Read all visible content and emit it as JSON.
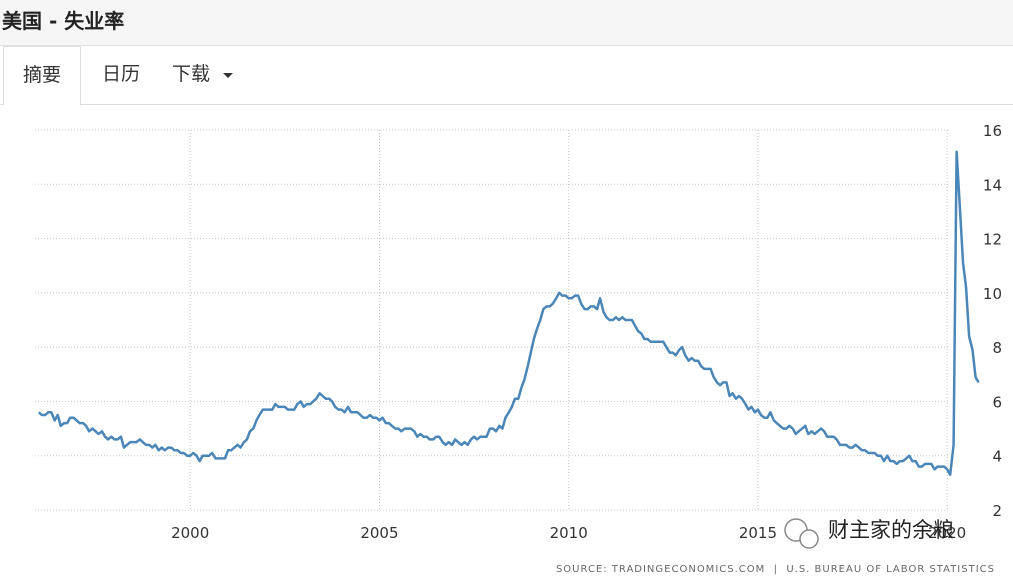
{
  "header": {
    "title": "美国 - 失业率"
  },
  "tabs": [
    "摘要",
    "日历",
    "下载"
  ],
  "source": "SOURCE: TRADINGECONOMICS.COM  |  U.S. BUREAU OF LABOR STATISTICS",
  "watermark": "财主家的余粮",
  "chart_data": {
    "type": "line",
    "color": "#4a86b8",
    "grid": true,
    "xlim": [
      1995.9,
      2021
    ],
    "xticks": [
      2000,
      2005,
      2010,
      2015,
      2020
    ],
    "ylim": [
      2,
      16
    ],
    "yticks": [
      2,
      4,
      6,
      8,
      10,
      12,
      14,
      16
    ],
    "x": [
      1996,
      1996.08,
      1996.17,
      1996.25,
      1996.33,
      1996.42,
      1996.5,
      1996.58,
      1996.67,
      1996.75,
      1996.83,
      1996.92,
      1997,
      1997.08,
      1997.17,
      1997.25,
      1997.33,
      1997.42,
      1997.5,
      1997.58,
      1997.67,
      1997.75,
      1997.83,
      1997.92,
      1998,
      1998.08,
      1998.17,
      1998.25,
      1998.33,
      1998.42,
      1998.5,
      1998.58,
      1998.67,
      1998.75,
      1998.83,
      1998.92,
      1999,
      1999.08,
      1999.17,
      1999.25,
      1999.33,
      1999.42,
      1999.5,
      1999.58,
      1999.67,
      1999.75,
      1999.83,
      1999.92,
      2000,
      2000.08,
      2000.17,
      2000.25,
      2000.33,
      2000.42,
      2000.5,
      2000.58,
      2000.67,
      2000.75,
      2000.83,
      2000.92,
      2001,
      2001.08,
      2001.17,
      2001.25,
      2001.33,
      2001.42,
      2001.5,
      2001.58,
      2001.67,
      2001.75,
      2001.83,
      2001.92,
      2002,
      2002.08,
      2002.17,
      2002.25,
      2002.33,
      2002.42,
      2002.5,
      2002.58,
      2002.67,
      2002.75,
      2002.83,
      2002.92,
      2003,
      2003.08,
      2003.17,
      2003.25,
      2003.33,
      2003.42,
      2003.5,
      2003.58,
      2003.67,
      2003.75,
      2003.83,
      2003.92,
      2004,
      2004.08,
      2004.17,
      2004.25,
      2004.33,
      2004.42,
      2004.5,
      2004.58,
      2004.67,
      2004.75,
      2004.83,
      2004.92,
      2005,
      2005.08,
      2005.17,
      2005.25,
      2005.33,
      2005.42,
      2005.5,
      2005.58,
      2005.67,
      2005.75,
      2005.83,
      2005.92,
      2006,
      2006.08,
      2006.17,
      2006.25,
      2006.33,
      2006.42,
      2006.5,
      2006.58,
      2006.67,
      2006.75,
      2006.83,
      2006.92,
      2007,
      2007.08,
      2007.17,
      2007.25,
      2007.33,
      2007.42,
      2007.5,
      2007.58,
      2007.67,
      2007.75,
      2007.83,
      2007.92,
      2008,
      2008.08,
      2008.17,
      2008.25,
      2008.33,
      2008.42,
      2008.5,
      2008.58,
      2008.67,
      2008.75,
      2008.83,
      2008.92,
      2009,
      2009.08,
      2009.17,
      2009.25,
      2009.33,
      2009.42,
      2009.5,
      2009.58,
      2009.67,
      2009.75,
      2009.83,
      2009.92,
      2010,
      2010.08,
      2010.17,
      2010.25,
      2010.33,
      2010.42,
      2010.5,
      2010.58,
      2010.67,
      2010.75,
      2010.83,
      2010.92,
      2011,
      2011.08,
      2011.17,
      2011.25,
      2011.33,
      2011.42,
      2011.5,
      2011.58,
      2011.67,
      2011.75,
      2011.83,
      2011.92,
      2012,
      2012.08,
      2012.17,
      2012.25,
      2012.33,
      2012.42,
      2012.5,
      2012.58,
      2012.67,
      2012.75,
      2012.83,
      2012.92,
      2013,
      2013.08,
      2013.17,
      2013.25,
      2013.33,
      2013.42,
      2013.5,
      2013.58,
      2013.67,
      2013.75,
      2013.83,
      2013.92,
      2014,
      2014.08,
      2014.17,
      2014.25,
      2014.33,
      2014.42,
      2014.5,
      2014.58,
      2014.67,
      2014.75,
      2014.83,
      2014.92,
      2015,
      2015.08,
      2015.17,
      2015.25,
      2015.33,
      2015.42,
      2015.5,
      2015.58,
      2015.67,
      2015.75,
      2015.83,
      2015.92,
      2016,
      2016.08,
      2016.17,
      2016.25,
      2016.33,
      2016.42,
      2016.5,
      2016.58,
      2016.67,
      2016.75,
      2016.83,
      2016.92,
      2017,
      2017.08,
      2017.17,
      2017.25,
      2017.33,
      2017.42,
      2017.5,
      2017.58,
      2017.67,
      2017.75,
      2017.83,
      2017.92,
      2018,
      2018.08,
      2018.17,
      2018.25,
      2018.33,
      2018.42,
      2018.5,
      2018.58,
      2018.67,
      2018.75,
      2018.83,
      2018.92,
      2019,
      2019.08,
      2019.17,
      2019.25,
      2019.33,
      2019.42,
      2019.5,
      2019.58,
      2019.67,
      2019.75,
      2019.83,
      2019.92,
      2020,
      2020.08,
      2020.17,
      2020.25,
      2020.33,
      2020.42,
      2020.5,
      2020.58,
      2020.67,
      2020.75,
      2020.83
    ],
    "values": [
      5.6,
      5.5,
      5.5,
      5.6,
      5.6,
      5.3,
      5.5,
      5.1,
      5.2,
      5.2,
      5.4,
      5.4,
      5.3,
      5.2,
      5.2,
      5.1,
      4.9,
      5.0,
      4.9,
      4.8,
      4.9,
      4.7,
      4.6,
      4.7,
      4.6,
      4.6,
      4.7,
      4.3,
      4.4,
      4.5,
      4.5,
      4.5,
      4.6,
      4.5,
      4.4,
      4.4,
      4.3,
      4.4,
      4.2,
      4.3,
      4.2,
      4.3,
      4.3,
      4.2,
      4.2,
      4.1,
      4.1,
      4.0,
      4.0,
      4.1,
      4.0,
      3.8,
      4.0,
      4.0,
      4.0,
      4.1,
      3.9,
      3.9,
      3.9,
      3.9,
      4.2,
      4.2,
      4.3,
      4.4,
      4.3,
      4.5,
      4.6,
      4.9,
      5.0,
      5.3,
      5.5,
      5.7,
      5.7,
      5.7,
      5.7,
      5.9,
      5.8,
      5.8,
      5.8,
      5.7,
      5.7,
      5.7,
      5.9,
      6.0,
      5.8,
      5.9,
      5.9,
      6.0,
      6.1,
      6.3,
      6.2,
      6.1,
      6.1,
      6.0,
      5.8,
      5.7,
      5.7,
      5.6,
      5.8,
      5.6,
      5.6,
      5.6,
      5.5,
      5.4,
      5.4,
      5.5,
      5.4,
      5.4,
      5.3,
      5.4,
      5.2,
      5.2,
      5.1,
      5.0,
      5.0,
      4.9,
      5.0,
      5.0,
      5.0,
      4.9,
      4.7,
      4.8,
      4.7,
      4.7,
      4.6,
      4.6,
      4.7,
      4.7,
      4.5,
      4.4,
      4.5,
      4.4,
      4.6,
      4.5,
      4.4,
      4.5,
      4.4,
      4.6,
      4.7,
      4.6,
      4.7,
      4.7,
      4.7,
      5.0,
      5.0,
      4.9,
      5.1,
      5.0,
      5.4,
      5.6,
      5.8,
      6.1,
      6.1,
      6.5,
      6.8,
      7.3,
      7.8,
      8.3,
      8.7,
      9.0,
      9.4,
      9.5,
      9.5,
      9.6,
      9.8,
      10.0,
      9.9,
      9.9,
      9.8,
      9.8,
      9.9,
      9.9,
      9.6,
      9.4,
      9.4,
      9.5,
      9.5,
      9.4,
      9.8,
      9.3,
      9.1,
      9.0,
      9.0,
      9.1,
      9.0,
      9.1,
      9.0,
      9.0,
      9.0,
      8.8,
      8.6,
      8.5,
      8.3,
      8.3,
      8.2,
      8.2,
      8.2,
      8.2,
      8.2,
      8.0,
      7.8,
      7.8,
      7.7,
      7.9,
      8.0,
      7.7,
      7.5,
      7.6,
      7.5,
      7.5,
      7.3,
      7.2,
      7.2,
      7.2,
      6.9,
      6.7,
      6.6,
      6.7,
      6.7,
      6.2,
      6.3,
      6.1,
      6.2,
      6.1,
      5.9,
      5.7,
      5.8,
      5.6,
      5.7,
      5.5,
      5.4,
      5.4,
      5.6,
      5.3,
      5.2,
      5.1,
      5.0,
      5.0,
      5.1,
      5.0,
      4.8,
      4.9,
      5.0,
      5.1,
      4.8,
      4.9,
      4.8,
      4.9,
      5.0,
      4.9,
      4.7,
      4.7,
      4.7,
      4.6,
      4.4,
      4.4,
      4.4,
      4.3,
      4.3,
      4.4,
      4.3,
      4.2,
      4.2,
      4.1,
      4.1,
      4.1,
      4.0,
      4.0,
      3.8,
      4.0,
      3.8,
      3.8,
      3.7,
      3.8,
      3.8,
      3.9,
      4.0,
      3.8,
      3.8,
      3.6,
      3.6,
      3.7,
      3.7,
      3.7,
      3.5,
      3.6,
      3.6,
      3.6,
      3.5,
      3.3,
      4.4,
      15.2,
      13.3,
      11.1,
      10.2,
      8.4,
      7.9,
      6.9,
      6.7
    ]
  }
}
